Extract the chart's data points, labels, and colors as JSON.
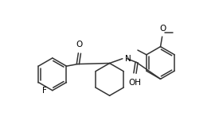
{
  "bg_color": "#ffffff",
  "line_color": "#333333",
  "line_width": 1.1,
  "font_size": 7.0,
  "figsize": [
    2.7,
    1.71
  ],
  "dpi": 100,
  "xlim": [
    0,
    10
  ],
  "ylim": [
    0,
    6.5
  ]
}
